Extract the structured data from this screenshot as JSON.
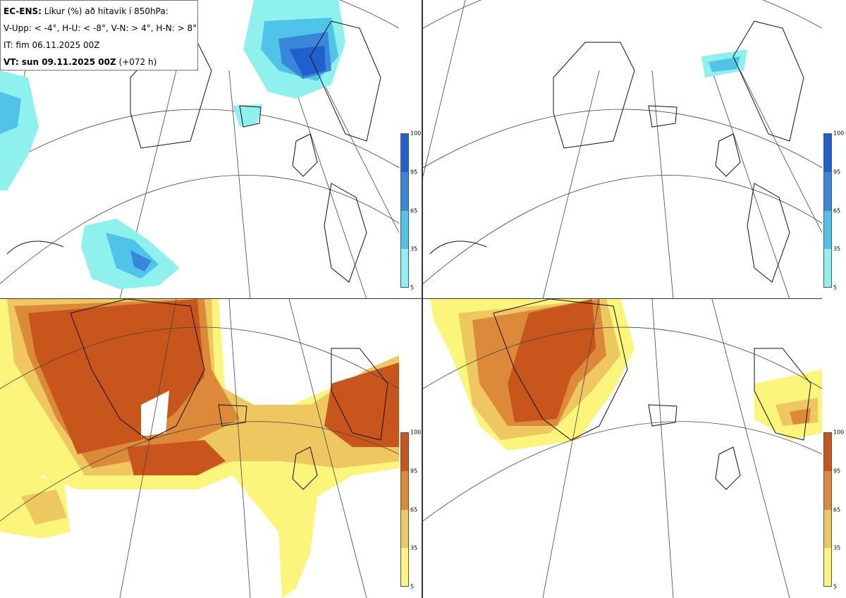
{
  "info": {
    "line1_bold": "EC-ENS:",
    "line1_rest": " Líkur (%) að hitavik í 850hPa:",
    "line2": "V-Upp: < -4°, H-U: < -8°, V-N: > 4°, H-N: > 8°",
    "line3": "IT: fim 06.11.2025 00Z",
    "line4_bold": "VT: sun 09.11.2025 00Z",
    "line4_rest": " (+072 h)"
  },
  "colorbar_cold": {
    "ticks": [
      "100",
      "95",
      "65",
      "35",
      "5"
    ],
    "colors": [
      "#1f5fcf",
      "#3a86d8",
      "#4fc3e8",
      "#8ff1ee"
    ]
  },
  "colorbar_warm": {
    "ticks": [
      "100",
      "95",
      "65",
      "35",
      "5"
    ],
    "colors": [
      "#c8561c",
      "#dc8a3a",
      "#eec760",
      "#fbf57c"
    ]
  }
}
